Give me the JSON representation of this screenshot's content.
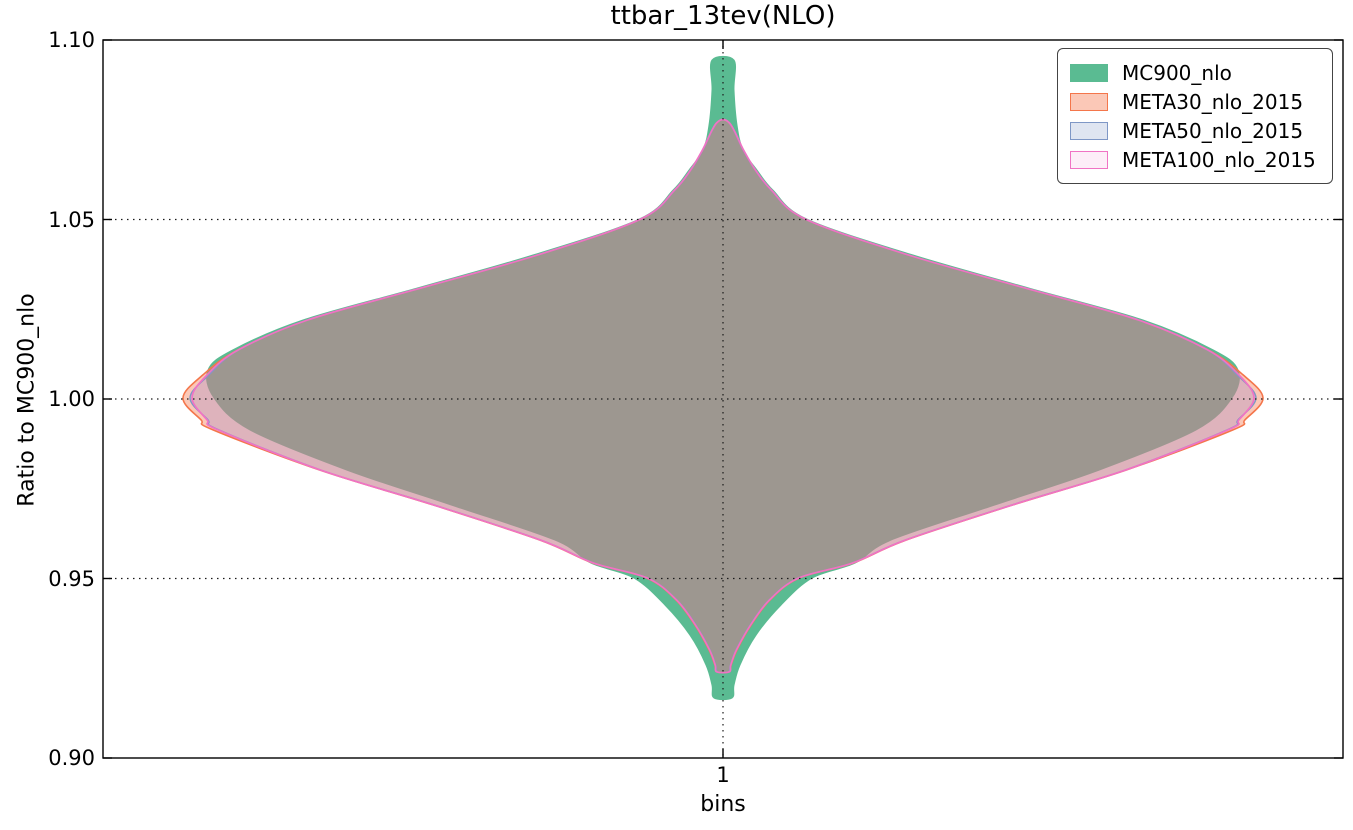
{
  "chart_data": {
    "type": "violin",
    "title": "ttbar_13tev(NLO)",
    "xlabel": "bins",
    "ylabel": "Ratio to MC900_nlo",
    "ylim": [
      0.9,
      1.1
    ],
    "yticks": [
      0.9,
      0.95,
      1.0,
      1.05,
      1.1
    ],
    "ytick_labels": [
      "0.90",
      "0.95",
      "1.00",
      "1.05",
      "1.10"
    ],
    "xticks": [
      {
        "label": "1",
        "pos": 0.5
      }
    ],
    "grid": {
      "style": "dotted",
      "color": "#1a1a1a",
      "y_values": [
        0.95,
        1.0,
        1.05
      ],
      "x_positions": [
        0.5
      ]
    },
    "frame_color": "#000000",
    "legend": {
      "position": "upper right",
      "entries": [
        {
          "label": "MC900_nlo",
          "fill": "#5abb92",
          "edge": "#5abb92"
        },
        {
          "label": "META30_nlo_2015",
          "fill": "rgba(244,118,75,0.40)",
          "edge": "#f4764b"
        },
        {
          "label": "META50_nlo_2015",
          "fill": "rgba(126,151,198,0.25)",
          "edge": "#7e97c6"
        },
        {
          "label": "META100_nlo_2015",
          "fill": "rgba(240,115,196,0.12)",
          "edge": "#f073c4"
        }
      ]
    },
    "series": [
      {
        "name": "MC900_nlo",
        "center": 0.5,
        "fill": "#5abb92",
        "edge": "#5abb92",
        "edge_width": 1.0,
        "profile": [
          [
            1.0944,
            0.0089
          ],
          [
            1.0861,
            0.0089
          ],
          [
            1.0763,
            0.0113
          ],
          [
            1.0694,
            0.0161
          ],
          [
            1.0638,
            0.0274
          ],
          [
            1.0582,
            0.0403
          ],
          [
            1.0501,
            0.0677
          ],
          [
            1.0401,
            0.1532
          ],
          [
            1.0309,
            0.2468
          ],
          [
            1.022,
            0.3387
          ],
          [
            1.0137,
            0.3952
          ],
          [
            1.0081,
            0.4153
          ],
          [
            1.0003,
            0.4105
          ],
          [
            0.9914,
            0.3815
          ],
          [
            0.9802,
            0.3032
          ],
          [
            0.9705,
            0.2194
          ],
          [
            0.9607,
            0.1355
          ],
          [
            0.9543,
            0.1065
          ],
          [
            0.9501,
            0.0718
          ],
          [
            0.9426,
            0.0468
          ],
          [
            0.9342,
            0.0266
          ],
          [
            0.9259,
            0.0137
          ],
          [
            0.9203,
            0.0089
          ],
          [
            0.9167,
            0.0073
          ]
        ]
      },
      {
        "name": "META30_nlo_2015",
        "center": 0.5,
        "fill": "rgba(244,118,75,0.40)",
        "edge": "#f4764b",
        "edge_width": 1.6,
        "profile": [
          [
            1.0769,
            0.0048
          ],
          [
            1.0694,
            0.0161
          ],
          [
            1.0638,
            0.0258
          ],
          [
            1.0582,
            0.0387
          ],
          [
            1.0501,
            0.0661
          ],
          [
            1.0401,
            0.1492
          ],
          [
            1.0309,
            0.2435
          ],
          [
            1.022,
            0.3347
          ],
          [
            1.0137,
            0.3911
          ],
          [
            1.0067,
            0.4194
          ],
          [
            1.0003,
            0.4355
          ],
          [
            0.9942,
            0.421
          ],
          [
            0.9914,
            0.4113
          ],
          [
            0.9802,
            0.325
          ],
          [
            0.9705,
            0.2339
          ],
          [
            0.9607,
            0.1476
          ],
          [
            0.9543,
            0.1048
          ],
          [
            0.9501,
            0.0613
          ],
          [
            0.944,
            0.0379
          ],
          [
            0.937,
            0.0226
          ],
          [
            0.9301,
            0.0113
          ],
          [
            0.9259,
            0.0065
          ],
          [
            0.924,
            0.0048
          ]
        ]
      },
      {
        "name": "META50_nlo_2015",
        "center": 0.5,
        "fill": "rgba(126,151,198,0.25)",
        "edge": "#7e97c6",
        "edge_width": 1.4,
        "profile": [
          [
            1.0769,
            0.0048
          ],
          [
            1.0694,
            0.0161
          ],
          [
            1.0638,
            0.0258
          ],
          [
            1.0582,
            0.0387
          ],
          [
            1.0501,
            0.0661
          ],
          [
            1.0401,
            0.1492
          ],
          [
            1.0309,
            0.2435
          ],
          [
            1.022,
            0.3347
          ],
          [
            1.0137,
            0.3903
          ],
          [
            1.0067,
            0.4145
          ],
          [
            1.0003,
            0.4298
          ],
          [
            0.9942,
            0.4153
          ],
          [
            0.9914,
            0.4065
          ],
          [
            0.9802,
            0.3242
          ],
          [
            0.9705,
            0.2331
          ],
          [
            0.9607,
            0.1468
          ],
          [
            0.9543,
            0.104
          ],
          [
            0.9501,
            0.0605
          ],
          [
            0.944,
            0.0371
          ],
          [
            0.937,
            0.0218
          ],
          [
            0.9301,
            0.0105
          ],
          [
            0.9259,
            0.006
          ],
          [
            0.924,
            0.0044
          ]
        ]
      },
      {
        "name": "META100_nlo_2015",
        "center": 0.5,
        "fill": "rgba(240,115,196,0.12)",
        "edge": "#f073c4",
        "edge_width": 1.7,
        "profile": [
          [
            1.0769,
            0.0052
          ],
          [
            1.0694,
            0.0165
          ],
          [
            1.0638,
            0.0262
          ],
          [
            1.0582,
            0.0391
          ],
          [
            1.0501,
            0.0665
          ],
          [
            1.0401,
            0.1496
          ],
          [
            1.0309,
            0.2439
          ],
          [
            1.022,
            0.3351
          ],
          [
            1.0137,
            0.3907
          ],
          [
            1.0067,
            0.4161
          ],
          [
            1.0003,
            0.4282
          ],
          [
            0.9942,
            0.4161
          ],
          [
            0.9914,
            0.4073
          ],
          [
            0.9802,
            0.3246
          ],
          [
            0.9705,
            0.2335
          ],
          [
            0.9607,
            0.1472
          ],
          [
            0.9543,
            0.1044
          ],
          [
            0.9501,
            0.0609
          ],
          [
            0.944,
            0.0375
          ],
          [
            0.937,
            0.0222
          ],
          [
            0.9301,
            0.0109
          ],
          [
            0.9259,
            0.0063
          ],
          [
            0.924,
            0.0052
          ]
        ]
      }
    ]
  }
}
